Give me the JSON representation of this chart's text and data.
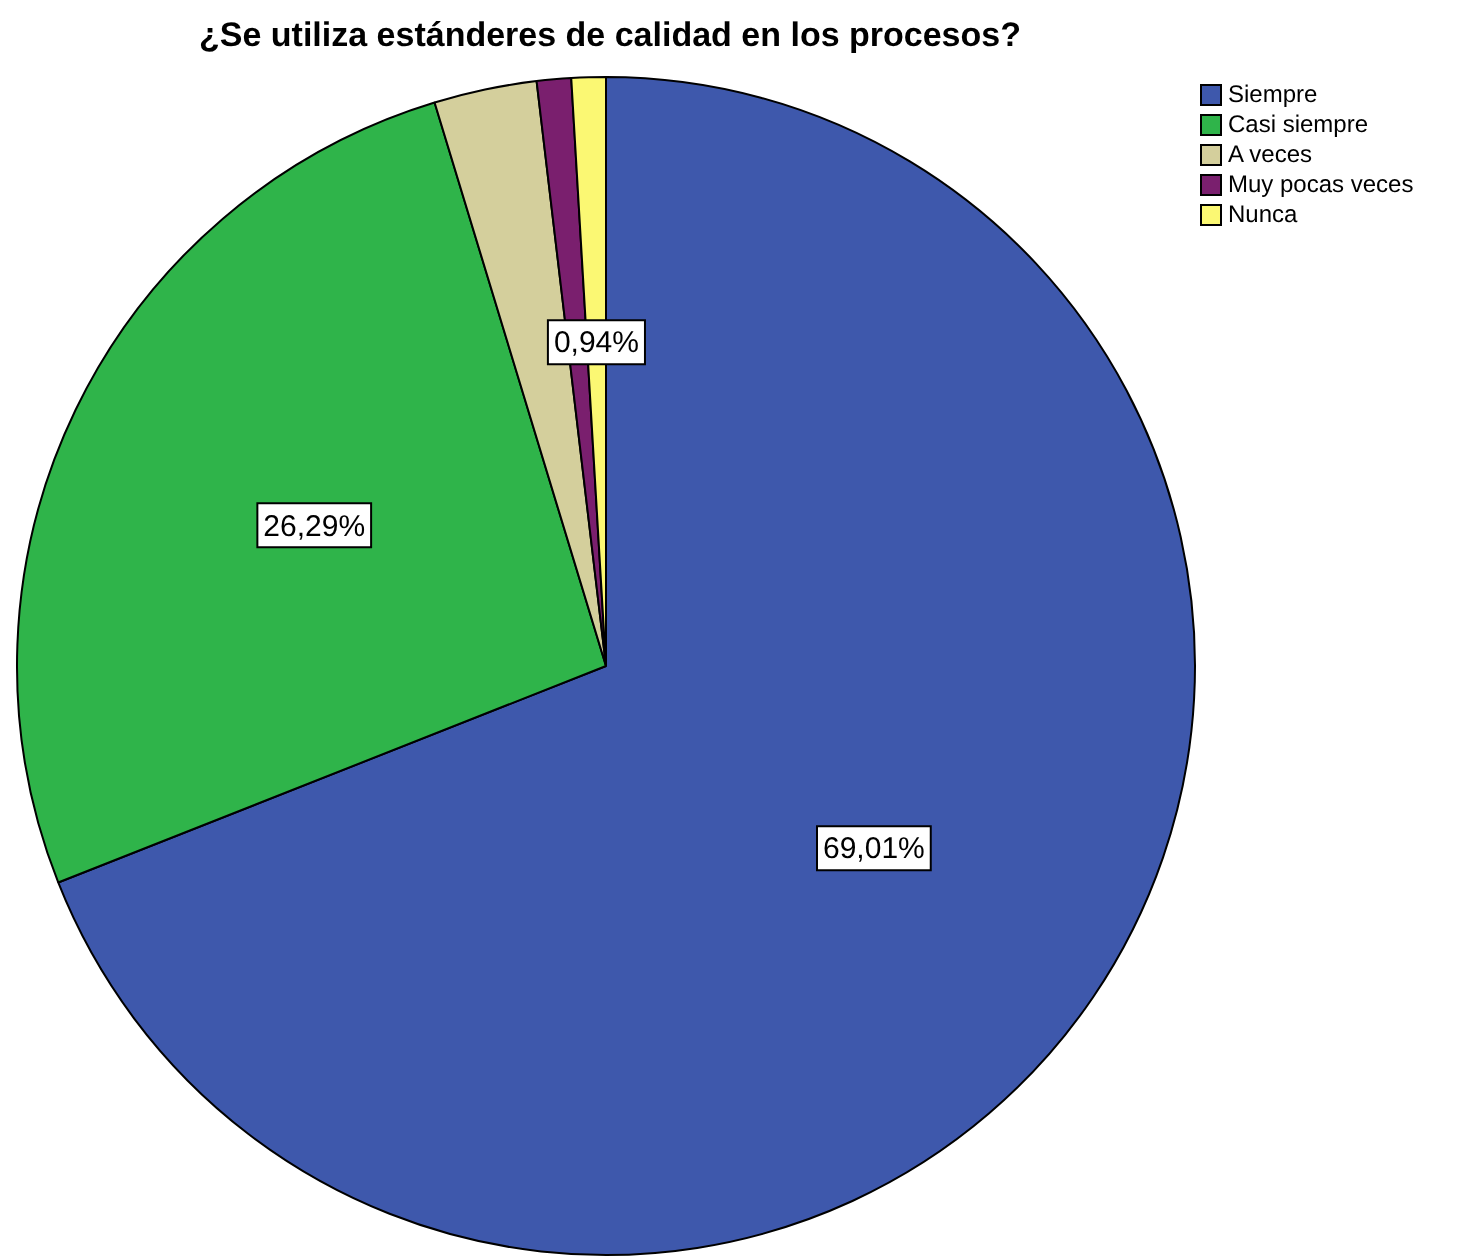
{
  "chart_data": {
    "type": "pie",
    "title": "¿Se utiliza estánderes de calidad en los procesos?",
    "categories": [
      "Siempre",
      "Casi siempre",
      "A veces",
      "Muy pocas veces",
      "Nunca"
    ],
    "values": [
      69.01,
      26.29,
      2.82,
      0.94,
      0.94
    ],
    "colors": [
      "#3e58ac",
      "#2fb44a",
      "#d4cf9c",
      "#7a1f6e",
      "#fbf873"
    ],
    "value_labels": [
      "69,01%",
      "26,29%",
      null,
      null,
      "0,94%"
    ],
    "legend": "top right"
  }
}
